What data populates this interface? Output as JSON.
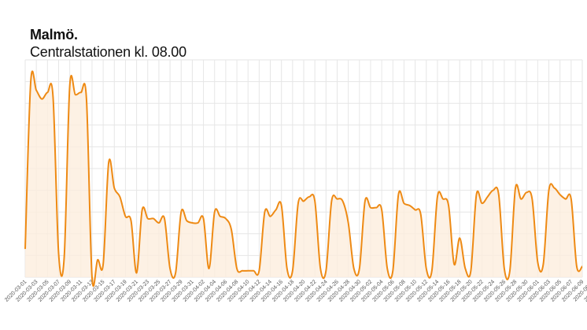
{
  "colors": {
    "line": "#ee8a14",
    "fill": "#fdeedd",
    "grid": "#e6e6e6"
  },
  "chart_data": {
    "type": "area",
    "title": "Malmö.",
    "subtitle": "Centralstationen kl. 08.00",
    "xlabel": "",
    "ylabel": "",
    "grid": true,
    "x_start": "2020-03-01",
    "x_end": "2020-06-14",
    "tick_labels": [
      "2020-03-01",
      "2020-03-03",
      "2020-03-05",
      "2020-03-07",
      "2020-03-09",
      "2020-03-11",
      "2020-03-13",
      "2020-03-15",
      "2020-03-17",
      "2020-03-19",
      "2020-03-21",
      "2020-03-23",
      "2020-03-25",
      "2020-03-27",
      "2020-03-29",
      "2020-03-31",
      "2020-04-02",
      "2020-04-04",
      "2020-04-06",
      "2020-04-08",
      "2020-04-10",
      "2020-04-12",
      "2020-04-14",
      "2020-04-16",
      "2020-04-18",
      "2020-04-20",
      "2020-04-22",
      "2020-04-24",
      "2020-04-26",
      "2020-04-28",
      "2020-04-30",
      "2020-05-02",
      "2020-05-04",
      "2020-05-06",
      "2020-05-08",
      "2020-05-10",
      "2020-05-12",
      "2020-05-14",
      "2020-05-16",
      "2020-05-18",
      "2020-05-20",
      "2020-05-22",
      "2020-05-24",
      "2020-05-26",
      "2020-05-28",
      "2020-05-30",
      "2020-06-01",
      "2020-06-03",
      "2020-06-05",
      "2020-06-07",
      "2020-06-09",
      "2020-06-11",
      "2020-06-13"
    ],
    "ylim": [
      0,
      100
    ],
    "y_ticks_labeled": false,
    "series": [
      {
        "values": [
          13,
          90,
          86,
          82,
          85,
          83,
          11,
          9,
          88,
          84,
          85,
          82,
          0,
          8,
          6,
          53,
          41,
          37,
          28,
          26,
          2,
          31,
          27,
          27,
          25,
          27,
          4,
          2,
          30,
          26,
          25,
          25,
          27,
          4,
          30,
          28,
          27,
          22,
          4,
          3,
          3,
          3,
          3,
          30,
          28,
          31,
          33,
          4,
          3,
          34,
          35,
          37,
          35,
          4,
          3,
          35,
          36,
          35,
          25,
          4,
          4,
          35,
          32,
          32,
          31,
          4,
          3,
          38,
          34,
          33,
          31,
          29,
          4,
          3,
          37,
          36,
          33,
          6,
          18,
          4,
          3,
          38,
          34,
          37,
          40,
          38,
          4,
          3,
          41,
          36,
          39,
          36,
          7,
          6,
          40,
          41,
          38,
          36,
          36,
          5,
          5
        ]
      }
    ]
  }
}
